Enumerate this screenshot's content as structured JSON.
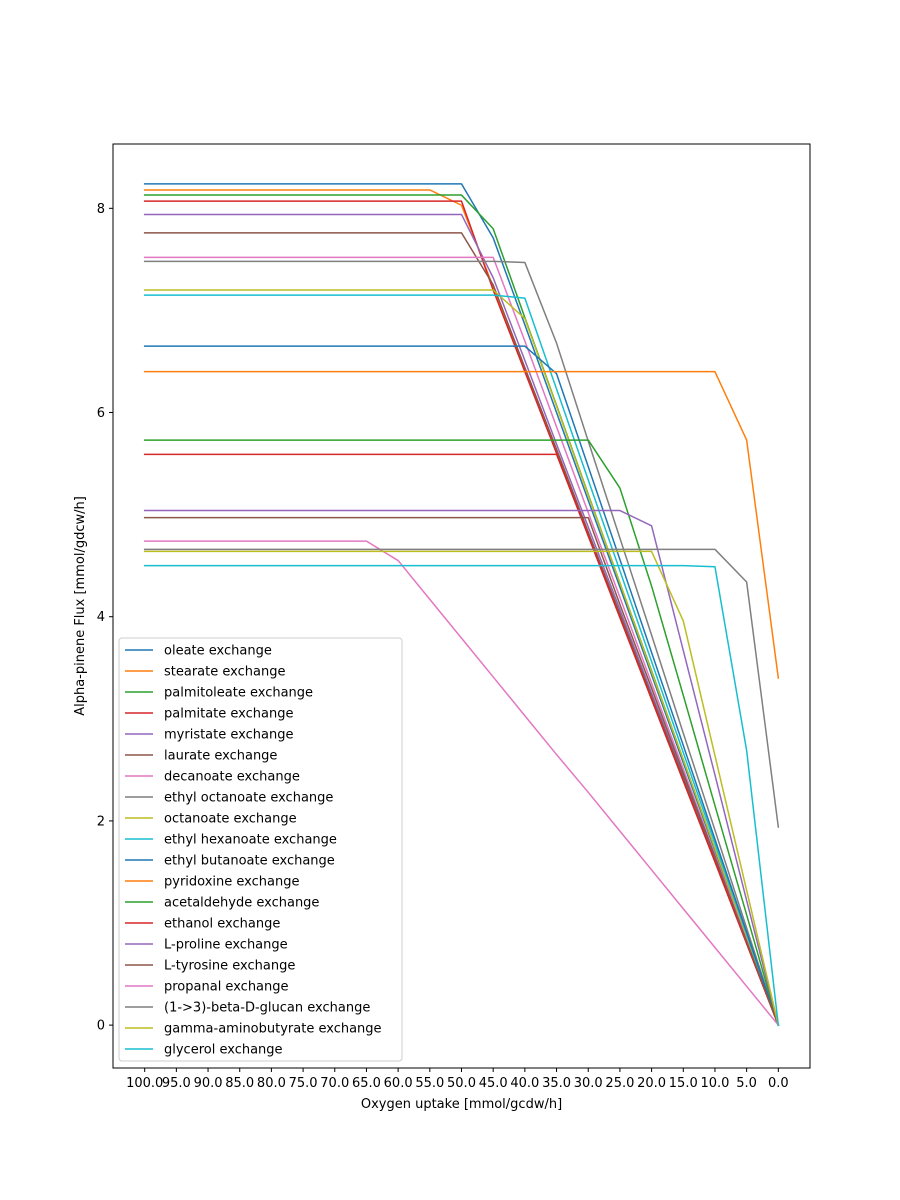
{
  "chart_data": {
    "type": "line",
    "title": "",
    "xlabel": "Oxygen uptake [mmol/gcdw/h]",
    "ylabel": "Alpha-pinene Flux [mmol/gdcw/h]",
    "x": [
      100,
      95,
      90,
      85,
      80,
      75,
      70,
      65,
      60,
      55,
      50,
      45,
      40,
      35,
      30,
      25,
      20,
      15,
      10,
      5,
      0
    ],
    "x_tick_labels": [
      "100.0",
      "95.0",
      "90.0",
      "85.0",
      "80.0",
      "75.0",
      "70.0",
      "65.0",
      "60.0",
      "55.0",
      "50.0",
      "45.0",
      "40.0",
      "35.0",
      "30.0",
      "25.0",
      "20.0",
      "15.0",
      "10.0",
      "5.0",
      "0.0"
    ],
    "xlim": [
      105,
      -5
    ],
    "x_reversed": true,
    "ylim": [
      -0.42,
      8.63
    ],
    "y_ticks": [
      0,
      2,
      4,
      6,
      8
    ],
    "y_tick_labels": [
      "0",
      "2",
      "4",
      "6",
      "8"
    ],
    "grid": false,
    "legend_position": "lower-left",
    "series": [
      {
        "name": "oleate exchange",
        "color": "#1f77b4",
        "values": [
          8.24,
          8.24,
          8.24,
          8.24,
          8.24,
          8.24,
          8.24,
          8.24,
          8.24,
          8.24,
          8.24,
          7.71,
          6.86,
          6.0,
          5.14,
          4.29,
          3.43,
          2.57,
          1.71,
          0.86,
          0.0
        ]
      },
      {
        "name": "stearate exchange",
        "color": "#ff7f0e",
        "values": [
          8.18,
          8.18,
          8.18,
          8.18,
          8.18,
          8.18,
          8.18,
          8.18,
          8.18,
          8.18,
          8.03,
          7.23,
          6.42,
          5.62,
          4.82,
          4.02,
          3.21,
          2.41,
          1.61,
          0.8,
          0.0
        ]
      },
      {
        "name": "palmitoleate exchange",
        "color": "#2ca02c",
        "values": [
          8.13,
          8.13,
          8.13,
          8.13,
          8.13,
          8.13,
          8.13,
          8.13,
          8.13,
          8.13,
          8.13,
          7.8,
          6.93,
          6.07,
          5.2,
          4.33,
          3.47,
          2.6,
          1.73,
          0.87,
          0.0
        ]
      },
      {
        "name": "palmitate exchange",
        "color": "#d62728",
        "values": [
          8.07,
          8.07,
          8.07,
          8.07,
          8.07,
          8.07,
          8.07,
          8.07,
          8.07,
          8.07,
          8.07,
          7.2,
          6.4,
          5.6,
          4.8,
          4.0,
          3.2,
          2.4,
          1.6,
          0.8,
          0.0
        ]
      },
      {
        "name": "myristate exchange",
        "color": "#9467bd",
        "values": [
          7.94,
          7.94,
          7.94,
          7.94,
          7.94,
          7.94,
          7.94,
          7.94,
          7.94,
          7.94,
          7.94,
          7.32,
          6.51,
          5.69,
          4.88,
          4.07,
          3.25,
          2.44,
          1.63,
          0.81,
          0.0
        ]
      },
      {
        "name": "laurate exchange",
        "color": "#8c564b",
        "values": [
          7.76,
          7.76,
          7.76,
          7.76,
          7.76,
          7.76,
          7.76,
          7.76,
          7.76,
          7.76,
          7.76,
          7.25,
          6.44,
          5.64,
          4.83,
          4.03,
          3.22,
          2.42,
          1.61,
          0.81,
          0.0
        ]
      },
      {
        "name": "decanoate exchange",
        "color": "#e377c2",
        "values": [
          7.52,
          7.52,
          7.52,
          7.52,
          7.52,
          7.52,
          7.52,
          7.52,
          7.52,
          7.52,
          7.52,
          7.52,
          6.7,
          5.86,
          5.02,
          4.19,
          3.35,
          2.51,
          1.67,
          0.84,
          0.0
        ]
      },
      {
        "name": "ethyl octanoate exchange",
        "color": "#7f7f7f",
        "values": [
          7.48,
          7.48,
          7.48,
          7.48,
          7.48,
          7.48,
          7.48,
          7.48,
          7.48,
          7.48,
          7.48,
          7.48,
          7.47,
          6.68,
          5.72,
          4.77,
          3.82,
          2.86,
          1.91,
          0.95,
          0.0
        ]
      },
      {
        "name": "octanoate exchange",
        "color": "#bcbd22",
        "values": [
          7.2,
          7.2,
          7.2,
          7.2,
          7.2,
          7.2,
          7.2,
          7.2,
          7.2,
          7.2,
          7.2,
          7.2,
          6.92,
          6.06,
          5.19,
          4.33,
          3.46,
          2.6,
          1.73,
          0.87,
          0.0
        ]
      },
      {
        "name": "ethyl hexanoate exchange",
        "color": "#17becf",
        "values": [
          7.15,
          7.15,
          7.15,
          7.15,
          7.15,
          7.15,
          7.15,
          7.15,
          7.15,
          7.15,
          7.15,
          7.15,
          7.12,
          6.23,
          5.34,
          4.45,
          3.56,
          2.67,
          1.78,
          0.89,
          0.0
        ]
      },
      {
        "name": "ethyl butanoate exchange",
        "color": "#1f77b4",
        "values": [
          6.65,
          6.65,
          6.65,
          6.65,
          6.65,
          6.65,
          6.65,
          6.65,
          6.65,
          6.65,
          6.65,
          6.65,
          6.65,
          6.38,
          5.47,
          4.56,
          3.65,
          2.74,
          1.82,
          0.91,
          0.0
        ]
      },
      {
        "name": "pyridoxine exchange",
        "color": "#ff7f0e",
        "values": [
          6.4,
          6.4,
          6.4,
          6.4,
          6.4,
          6.4,
          6.4,
          6.4,
          6.4,
          6.4,
          6.4,
          6.4,
          6.4,
          6.4,
          6.4,
          6.4,
          6.4,
          6.4,
          6.4,
          5.73,
          3.4
        ]
      },
      {
        "name": "acetaldehyde exchange",
        "color": "#2ca02c",
        "values": [
          5.73,
          5.73,
          5.73,
          5.73,
          5.73,
          5.73,
          5.73,
          5.73,
          5.73,
          5.73,
          5.73,
          5.73,
          5.73,
          5.73,
          5.73,
          5.26,
          4.3,
          3.23,
          2.15,
          1.08,
          0.0
        ]
      },
      {
        "name": "ethanol exchange",
        "color": "#d62728",
        "values": [
          5.59,
          5.59,
          5.59,
          5.59,
          5.59,
          5.59,
          5.59,
          5.59,
          5.59,
          5.59,
          5.59,
          5.59,
          5.59,
          5.59,
          4.79,
          3.99,
          3.19,
          2.39,
          1.6,
          0.8,
          0.0
        ]
      },
      {
        "name": "L-proline exchange",
        "color": "#9467bd",
        "values": [
          5.04,
          5.04,
          5.04,
          5.04,
          5.04,
          5.04,
          5.04,
          5.04,
          5.04,
          5.04,
          5.04,
          5.04,
          5.04,
          5.04,
          5.04,
          5.04,
          4.89,
          3.67,
          2.45,
          1.22,
          0.0
        ]
      },
      {
        "name": "L-tyrosine exchange",
        "color": "#8c564b",
        "values": [
          4.97,
          4.97,
          4.97,
          4.97,
          4.97,
          4.97,
          4.97,
          4.97,
          4.97,
          4.97,
          4.97,
          4.97,
          4.97,
          4.97,
          4.97,
          4.12,
          3.3,
          2.47,
          1.65,
          0.82,
          0.0
        ]
      },
      {
        "name": "propanal exchange",
        "color": "#e377c2",
        "values": [
          4.74,
          4.74,
          4.74,
          4.74,
          4.74,
          4.74,
          4.74,
          4.74,
          4.55,
          4.17,
          3.79,
          3.41,
          3.03,
          2.65,
          2.28,
          1.9,
          1.52,
          1.14,
          0.76,
          0.38,
          0.0
        ]
      },
      {
        "name": "(1->3)-beta-D-glucan exchange",
        "color": "#7f7f7f",
        "values": [
          4.66,
          4.66,
          4.66,
          4.66,
          4.66,
          4.66,
          4.66,
          4.66,
          4.66,
          4.66,
          4.66,
          4.66,
          4.66,
          4.66,
          4.66,
          4.66,
          4.66,
          4.66,
          4.66,
          4.34,
          1.94
        ]
      },
      {
        "name": "gamma-aminobutyrate exchange",
        "color": "#bcbd22",
        "values": [
          4.64,
          4.64,
          4.64,
          4.64,
          4.64,
          4.64,
          4.64,
          4.64,
          4.64,
          4.64,
          4.64,
          4.64,
          4.64,
          4.64,
          4.64,
          4.64,
          4.64,
          3.96,
          2.64,
          1.32,
          0.0
        ]
      },
      {
        "name": "glycerol exchange",
        "color": "#17becf",
        "values": [
          4.5,
          4.5,
          4.5,
          4.5,
          4.5,
          4.5,
          4.5,
          4.5,
          4.5,
          4.5,
          4.5,
          4.5,
          4.5,
          4.5,
          4.5,
          4.5,
          4.5,
          4.5,
          4.49,
          2.69,
          0.0
        ]
      }
    ]
  }
}
